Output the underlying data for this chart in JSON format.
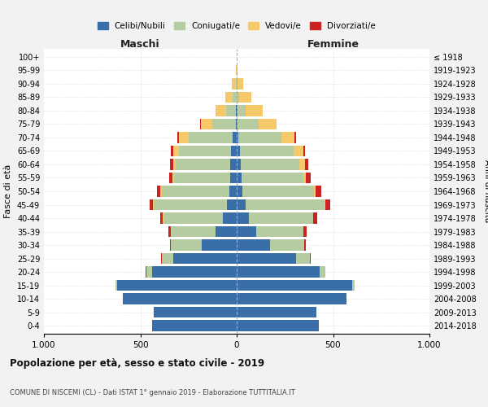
{
  "age_groups": [
    "0-4",
    "5-9",
    "10-14",
    "15-19",
    "20-24",
    "25-29",
    "30-34",
    "35-39",
    "40-44",
    "45-49",
    "50-54",
    "55-59",
    "60-64",
    "65-69",
    "70-74",
    "75-79",
    "80-84",
    "85-89",
    "90-94",
    "95-99",
    "100+"
  ],
  "birth_years": [
    "2014-2018",
    "2009-2013",
    "2004-2008",
    "1999-2003",
    "1994-1998",
    "1989-1993",
    "1984-1988",
    "1979-1983",
    "1974-1978",
    "1969-1973",
    "1964-1968",
    "1959-1963",
    "1954-1958",
    "1949-1953",
    "1944-1948",
    "1939-1943",
    "1934-1938",
    "1929-1933",
    "1924-1928",
    "1919-1923",
    "≤ 1918"
  ],
  "colors": {
    "celibe": "#3a6ea8",
    "coniugato": "#b5cba0",
    "vedovo": "#f5c96a",
    "divorziato": "#cc2222"
  },
  "male": {
    "celibe": [
      440,
      430,
      590,
      620,
      440,
      330,
      180,
      110,
      70,
      50,
      40,
      35,
      35,
      30,
      20,
      6,
      3,
      1,
      0,
      0,
      0
    ],
    "coniugato": [
      0,
      0,
      0,
      10,
      30,
      60,
      160,
      230,
      310,
      380,
      350,
      290,
      280,
      270,
      230,
      120,
      50,
      20,
      5,
      1,
      0
    ],
    "vedovo": [
      0,
      0,
      0,
      0,
      0,
      0,
      0,
      1,
      2,
      3,
      5,
      8,
      15,
      30,
      50,
      60,
      55,
      40,
      20,
      3,
      0
    ],
    "divorziato": [
      0,
      0,
      0,
      0,
      1,
      3,
      8,
      12,
      15,
      18,
      20,
      18,
      15,
      12,
      10,
      2,
      0,
      0,
      0,
      0,
      0
    ]
  },
  "female": {
    "nubile": [
      425,
      415,
      570,
      600,
      430,
      310,
      175,
      100,
      65,
      45,
      30,
      25,
      20,
      15,
      10,
      5,
      3,
      1,
      0,
      0,
      0
    ],
    "coniugata": [
      0,
      0,
      0,
      10,
      30,
      70,
      175,
      245,
      330,
      410,
      370,
      320,
      305,
      280,
      220,
      110,
      45,
      12,
      4,
      1,
      0
    ],
    "vedova": [
      0,
      0,
      0,
      0,
      0,
      0,
      0,
      2,
      3,
      5,
      8,
      15,
      28,
      50,
      70,
      90,
      85,
      65,
      28,
      5,
      1
    ],
    "divorziata": [
      0,
      0,
      0,
      0,
      2,
      4,
      10,
      15,
      20,
      25,
      30,
      25,
      18,
      10,
      8,
      2,
      0,
      0,
      0,
      0,
      0
    ]
  },
  "xlim": 1000,
  "title": "Popolazione per età, sesso e stato civile - 2019",
  "subtitle": "COMUNE DI NISCEMI (CL) - Dati ISTAT 1° gennaio 2019 - Elaborazione TUTTITALIA.IT",
  "ylabel_left": "Fasce di età",
  "ylabel_right": "Anni di nascita",
  "xlabel_left": "Maschi",
  "xlabel_right": "Femmine",
  "xtick_labels": [
    "1.000",
    "500",
    "0",
    "500",
    "1.000"
  ],
  "background_color": "#f2f2f2",
  "plot_bg": "#ffffff",
  "legend_labels": [
    "Celibi/Nubili",
    "Coniugati/e",
    "Vedovi/e",
    "Divorziati/e"
  ],
  "legend_colors": [
    "#3a6ea8",
    "#b5cba0",
    "#f5c96a",
    "#cc2222"
  ]
}
